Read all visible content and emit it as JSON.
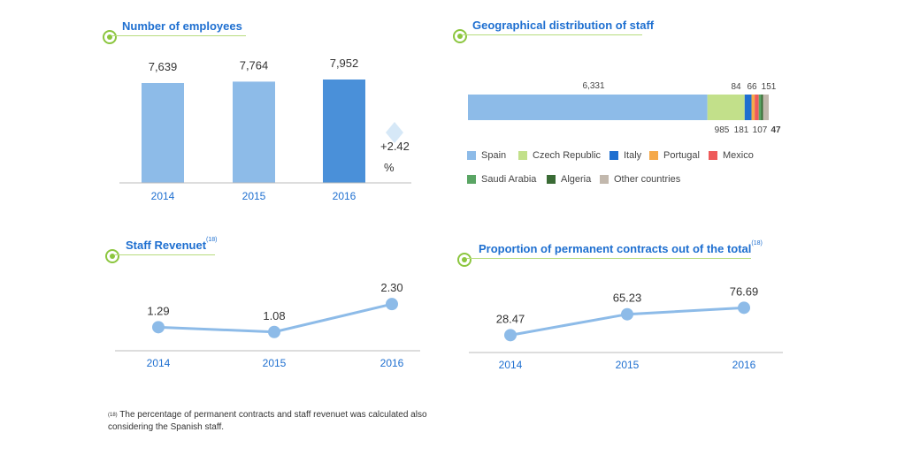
{
  "panels": {
    "employees": {
      "title": "Number of employees"
    },
    "geo": {
      "title": "Geographical distribution of staff"
    },
    "revenuet": {
      "title": "Staff Revenuet",
      "note": "(18)"
    },
    "permanent": {
      "title": "Proportion of permanent contracts out of the total",
      "note": "(18)"
    }
  },
  "growth_badge": {
    "value": "+2.42",
    "unit": "%"
  },
  "footnote": {
    "mark": "(18)",
    "text": "The percentage of permanent contracts and staff revenuet was calculated also considering the Spanish staff."
  },
  "colors": {
    "bar_light": "#8dbbe8",
    "bar_dark": "#4a90d9",
    "line": "#8dbbe8",
    "axis_text": "#1e6fd0",
    "accent_green": "#8cc63f"
  },
  "chart_data": [
    {
      "id": "employees",
      "type": "bar",
      "title": "Number of employees",
      "categories": [
        "2014",
        "2015",
        "2016"
      ],
      "values": [
        7639,
        7764,
        7952
      ],
      "value_labels": [
        "7,639",
        "7,764",
        "7,952"
      ],
      "ylim": [
        0,
        8200
      ]
    },
    {
      "id": "geo",
      "type": "bar",
      "stacked": true,
      "orientation": "horizontal",
      "title": "Geographical distribution of staff",
      "series": [
        {
          "name": "Spain",
          "value": 6331,
          "label": "6,331",
          "color": "#8dbbe8"
        },
        {
          "name": "Czech Republic",
          "value": 985,
          "label": "985",
          "color": "#c2e08a"
        },
        {
          "name": "Italy",
          "value": 181,
          "label": "181",
          "color": "#1f6fd0"
        },
        {
          "name": "Portugal",
          "value": 84,
          "label": "84",
          "color": "#f5a94a"
        },
        {
          "name": "Mexico",
          "value": 107,
          "label": "107",
          "color": "#ee5a5a"
        },
        {
          "name": "Saudi Arabia",
          "value": 66,
          "label": "66",
          "color": "#5aa564"
        },
        {
          "name": "Algeria",
          "value": 47,
          "label": "47",
          "color": "#3a6b35"
        },
        {
          "name": "Other countries",
          "value": 151,
          "label": "151",
          "color": "#c2b8ad"
        }
      ],
      "legend": "bottom"
    },
    {
      "id": "revenuet",
      "type": "line",
      "title": "Staff Revenuet",
      "x": [
        "2014",
        "2015",
        "2016"
      ],
      "y": [
        1.29,
        1.08,
        2.3
      ],
      "y_labels": [
        "1.29",
        "1.08",
        "2.30"
      ],
      "ylim": [
        0.8,
        2.5
      ]
    },
    {
      "id": "permanent",
      "type": "line",
      "title": "Proportion of permanent contracts out of the total",
      "x": [
        "2014",
        "2015",
        "2016"
      ],
      "y": [
        28.47,
        65.23,
        76.69
      ],
      "y_labels": [
        "28.47",
        "65.23",
        "76.69"
      ],
      "ylim": [
        15,
        85
      ]
    }
  ]
}
